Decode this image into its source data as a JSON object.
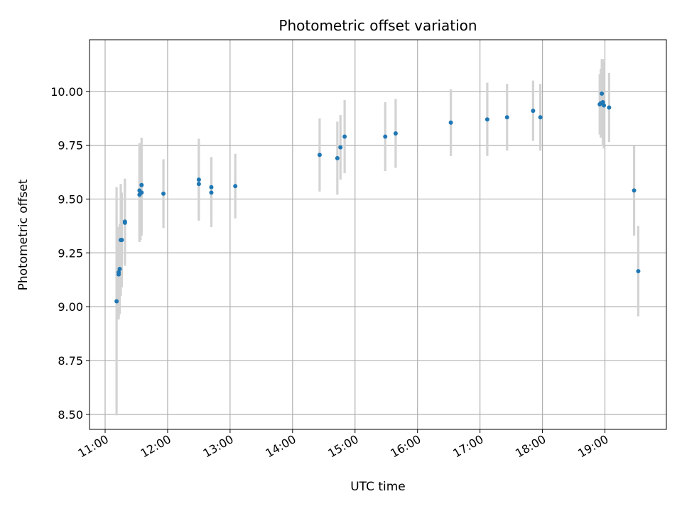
{
  "chart_data": {
    "type": "scatter",
    "title": "Photometric offset variation",
    "xlabel": "UTC time",
    "ylabel": "Photometric offset",
    "xlim": [
      "10:45",
      "19:59"
    ],
    "ylim": [
      8.43,
      10.24
    ],
    "x_ticks": [
      "11:00",
      "12:00",
      "13:00",
      "14:00",
      "15:00",
      "16:00",
      "17:00",
      "18:00",
      "19:00"
    ],
    "y_ticks": [
      "8.50",
      "8.75",
      "9.00",
      "9.25",
      "9.50",
      "9.75",
      "10.00"
    ],
    "grid": true,
    "colors": {
      "point": "#1f77b4",
      "errorbar": "#d3d3d3",
      "grid": "#b0b0b0"
    },
    "points": [
      {
        "x": "11:11",
        "y": 9.025,
        "err": 0.53
      },
      {
        "x": "11:13",
        "y": 9.15,
        "err": 0.21
      },
      {
        "x": "11:13",
        "y": 9.16,
        "err": 0.21
      },
      {
        "x": "11:14",
        "y": 9.175,
        "err": 0.21
      },
      {
        "x": "11:15",
        "y": 9.31,
        "err": 0.26
      },
      {
        "x": "11:16",
        "y": 9.31,
        "err": 0.22
      },
      {
        "x": "11:19",
        "y": 9.39,
        "err": 0.2
      },
      {
        "x": "11:19",
        "y": 9.395,
        "err": 0.2
      },
      {
        "x": "11:33",
        "y": 9.52,
        "err": 0.22
      },
      {
        "x": "11:33",
        "y": 9.54,
        "err": 0.22
      },
      {
        "x": "11:34",
        "y": 9.53,
        "err": 0.22
      },
      {
        "x": "11:35",
        "y": 9.565,
        "err": 0.22
      },
      {
        "x": "11:35",
        "y": 9.53,
        "err": 0.2
      },
      {
        "x": "11:56",
        "y": 9.525,
        "err": 0.16
      },
      {
        "x": "12:30",
        "y": 9.57,
        "err": 0.17
      },
      {
        "x": "12:30",
        "y": 9.59,
        "err": 0.19
      },
      {
        "x": "12:42",
        "y": 9.555,
        "err": 0.14
      },
      {
        "x": "12:42",
        "y": 9.53,
        "err": 0.16
      },
      {
        "x": "13:05",
        "y": 9.56,
        "err": 0.15
      },
      {
        "x": "14:26",
        "y": 9.705,
        "err": 0.17
      },
      {
        "x": "14:43",
        "y": 9.69,
        "err": 0.17
      },
      {
        "x": "14:46",
        "y": 9.74,
        "err": 0.15
      },
      {
        "x": "14:50",
        "y": 9.79,
        "err": 0.17
      },
      {
        "x": "15:29",
        "y": 9.79,
        "err": 0.16
      },
      {
        "x": "15:39",
        "y": 9.805,
        "err": 0.16
      },
      {
        "x": "16:32",
        "y": 9.855,
        "err": 0.155
      },
      {
        "x": "17:07",
        "y": 9.87,
        "err": 0.17
      },
      {
        "x": "17:26",
        "y": 9.88,
        "err": 0.155
      },
      {
        "x": "17:51",
        "y": 9.91,
        "err": 0.14
      },
      {
        "x": "17:58",
        "y": 9.88,
        "err": 0.155
      },
      {
        "x": "18:55",
        "y": 9.94,
        "err": 0.14
      },
      {
        "x": "18:56",
        "y": 9.945,
        "err": 0.16
      },
      {
        "x": "18:57",
        "y": 9.99,
        "err": 0.16
      },
      {
        "x": "18:58",
        "y": 9.95,
        "err": 0.2
      },
      {
        "x": "18:59",
        "y": 9.935,
        "err": 0.2
      },
      {
        "x": "19:04",
        "y": 9.925,
        "err": 0.16
      },
      {
        "x": "19:28",
        "y": 9.54,
        "err": 0.21
      },
      {
        "x": "19:32",
        "y": 9.165,
        "err": 0.21
      }
    ]
  }
}
